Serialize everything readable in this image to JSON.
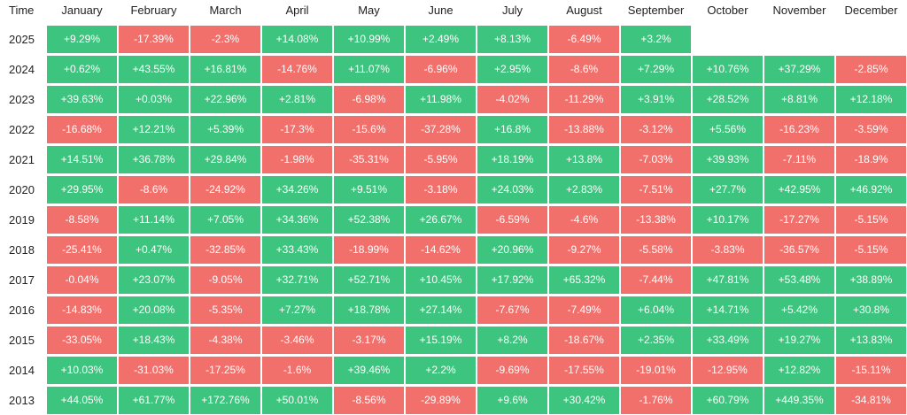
{
  "header": {
    "time_label": "Time"
  },
  "colors": {
    "positive": "#3dc47e",
    "negative": "#f2706c"
  },
  "chart_data": {
    "type": "heatmap",
    "title": "",
    "x_label": "",
    "y_label": "",
    "months": [
      "January",
      "February",
      "March",
      "April",
      "May",
      "June",
      "July",
      "August",
      "September",
      "October",
      "November",
      "December"
    ],
    "years": [
      "2025",
      "2024",
      "2023",
      "2022",
      "2021",
      "2020",
      "2019",
      "2018",
      "2017",
      "2016",
      "2015",
      "2014",
      "2013"
    ],
    "values": [
      [
        9.29,
        -17.39,
        -2.3,
        14.08,
        10.99,
        2.49,
        8.13,
        -6.49,
        3.2,
        null,
        null,
        null
      ],
      [
        0.62,
        43.55,
        16.81,
        -14.76,
        11.07,
        -6.96,
        2.95,
        -8.6,
        7.29,
        10.76,
        37.29,
        -2.85
      ],
      [
        39.63,
        0.03,
        22.96,
        2.81,
        -6.98,
        11.98,
        -4.02,
        -11.29,
        3.91,
        28.52,
        8.81,
        12.18
      ],
      [
        -16.68,
        12.21,
        5.39,
        -17.3,
        -15.6,
        -37.28,
        16.8,
        -13.88,
        -3.12,
        5.56,
        -16.23,
        -3.59
      ],
      [
        14.51,
        36.78,
        29.84,
        -1.98,
        -35.31,
        -5.95,
        18.19,
        13.8,
        -7.03,
        39.93,
        -7.11,
        -18.9
      ],
      [
        29.95,
        -8.6,
        -24.92,
        34.26,
        9.51,
        -3.18,
        24.03,
        2.83,
        -7.51,
        27.7,
        42.95,
        46.92
      ],
      [
        -8.58,
        11.14,
        7.05,
        34.36,
        52.38,
        26.67,
        -6.59,
        -4.6,
        -13.38,
        10.17,
        -17.27,
        -5.15
      ],
      [
        -25.41,
        0.47,
        -32.85,
        33.43,
        -18.99,
        -14.62,
        20.96,
        -9.27,
        -5.58,
        -3.83,
        -36.57,
        -5.15
      ],
      [
        -0.04,
        23.07,
        -9.05,
        32.71,
        52.71,
        10.45,
        17.92,
        65.32,
        -7.44,
        47.81,
        53.48,
        38.89
      ],
      [
        -14.83,
        20.08,
        -5.35,
        7.27,
        18.78,
        27.14,
        -7.67,
        -7.49,
        6.04,
        14.71,
        5.42,
        30.8
      ],
      [
        -33.05,
        18.43,
        -4.38,
        -3.46,
        -3.17,
        15.19,
        8.2,
        -18.67,
        2.35,
        33.49,
        19.27,
        13.83
      ],
      [
        10.03,
        -31.03,
        -17.25,
        -1.6,
        39.46,
        2.2,
        -9.69,
        -17.55,
        -19.01,
        -12.95,
        12.82,
        -15.11
      ],
      [
        44.05,
        61.77,
        172.76,
        50.01,
        -8.56,
        -29.89,
        9.6,
        30.42,
        -1.76,
        60.79,
        449.35,
        -34.81
      ]
    ],
    "labels": [
      [
        "+9.29%",
        "-17.39%",
        "-2.3%",
        "+14.08%",
        "+10.99%",
        "+2.49%",
        "+8.13%",
        "-6.49%",
        "+3.2%",
        "",
        "",
        ""
      ],
      [
        "+0.62%",
        "+43.55%",
        "+16.81%",
        "-14.76%",
        "+11.07%",
        "-6.96%",
        "+2.95%",
        "-8.6%",
        "+7.29%",
        "+10.76%",
        "+37.29%",
        "-2.85%"
      ],
      [
        "+39.63%",
        "+0.03%",
        "+22.96%",
        "+2.81%",
        "-6.98%",
        "+11.98%",
        "-4.02%",
        "-11.29%",
        "+3.91%",
        "+28.52%",
        "+8.81%",
        "+12.18%"
      ],
      [
        "-16.68%",
        "+12.21%",
        "+5.39%",
        "-17.3%",
        "-15.6%",
        "-37.28%",
        "+16.8%",
        "-13.88%",
        "-3.12%",
        "+5.56%",
        "-16.23%",
        "-3.59%"
      ],
      [
        "+14.51%",
        "+36.78%",
        "+29.84%",
        "-1.98%",
        "-35.31%",
        "-5.95%",
        "+18.19%",
        "+13.8%",
        "-7.03%",
        "+39.93%",
        "-7.11%",
        "-18.9%"
      ],
      [
        "+29.95%",
        "-8.6%",
        "-24.92%",
        "+34.26%",
        "+9.51%",
        "-3.18%",
        "+24.03%",
        "+2.83%",
        "-7.51%",
        "+27.7%",
        "+42.95%",
        "+46.92%"
      ],
      [
        "-8.58%",
        "+11.14%",
        "+7.05%",
        "+34.36%",
        "+52.38%",
        "+26.67%",
        "-6.59%",
        "-4.6%",
        "-13.38%",
        "+10.17%",
        "-17.27%",
        "-5.15%"
      ],
      [
        "-25.41%",
        "+0.47%",
        "-32.85%",
        "+33.43%",
        "-18.99%",
        "-14.62%",
        "+20.96%",
        "-9.27%",
        "-5.58%",
        "-3.83%",
        "-36.57%",
        "-5.15%"
      ],
      [
        "-0.04%",
        "+23.07%",
        "-9.05%",
        "+32.71%",
        "+52.71%",
        "+10.45%",
        "+17.92%",
        "+65.32%",
        "-7.44%",
        "+47.81%",
        "+53.48%",
        "+38.89%"
      ],
      [
        "-14.83%",
        "+20.08%",
        "-5.35%",
        "+7.27%",
        "+18.78%",
        "+27.14%",
        "-7.67%",
        "-7.49%",
        "+6.04%",
        "+14.71%",
        "+5.42%",
        "+30.8%"
      ],
      [
        "-33.05%",
        "+18.43%",
        "-4.38%",
        "-3.46%",
        "-3.17%",
        "+15.19%",
        "+8.2%",
        "-18.67%",
        "+2.35%",
        "+33.49%",
        "+19.27%",
        "+13.83%"
      ],
      [
        "+10.03%",
        "-31.03%",
        "-17.25%",
        "-1.6%",
        "+39.46%",
        "+2.2%",
        "-9.69%",
        "-17.55%",
        "-19.01%",
        "-12.95%",
        "+12.82%",
        "-15.11%"
      ],
      [
        "+44.05%",
        "+61.77%",
        "+172.76%",
        "+50.01%",
        "-8.56%",
        "-29.89%",
        "+9.6%",
        "+30.42%",
        "-1.76%",
        "+60.79%",
        "+449.35%",
        "-34.81%"
      ]
    ]
  }
}
